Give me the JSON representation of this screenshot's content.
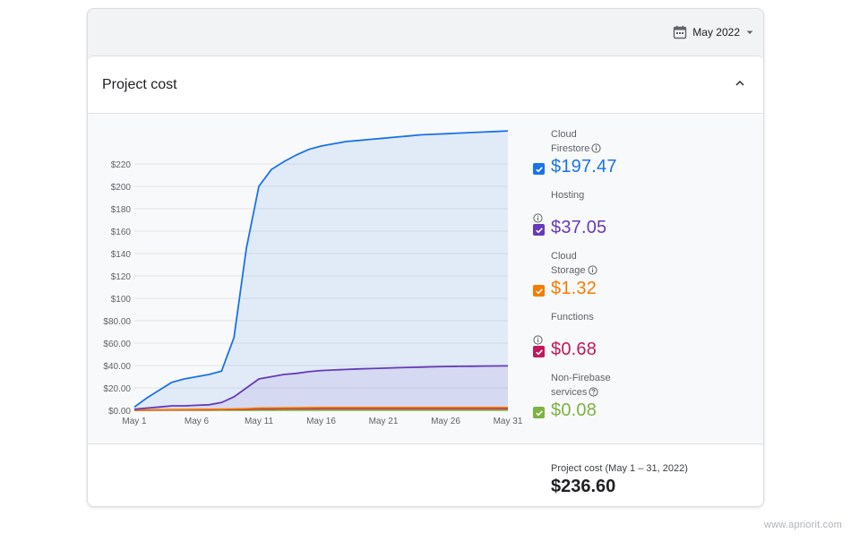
{
  "date_picker": {
    "label": "May 2022"
  },
  "panel": {
    "title": "Project cost"
  },
  "legend": [
    {
      "label_lines": [
        "Cloud",
        "Firestore"
      ],
      "info": "info",
      "value": "$197.47",
      "color": "#1a73e8"
    },
    {
      "label_lines": [
        "Hosting"
      ],
      "info": "info",
      "value": "$37.05",
      "color": "#673ab7"
    },
    {
      "label_lines": [
        "Cloud",
        "Storage"
      ],
      "info": "info",
      "value": "$1.32",
      "color": "#f57c00"
    },
    {
      "label_lines": [
        "Functions"
      ],
      "info": "info",
      "value": "$0.68",
      "color": "#c2185b"
    },
    {
      "label_lines": [
        "Non-Firebase",
        "services"
      ],
      "info": "help",
      "value": "$0.08",
      "color": "#7cb342"
    }
  ],
  "total": {
    "label": "Project cost (May 1 – 31, 2022)",
    "value": "$236.60"
  },
  "watermark": "www.apriorit.com",
  "chart_data": {
    "type": "area",
    "x_tick_labels": [
      "May 1",
      "May 6",
      "May 11",
      "May 16",
      "May 21",
      "May 26",
      "May 31"
    ],
    "y_tick_labels": [
      "$0.00",
      "$20.00",
      "$40.00",
      "$60.00",
      "$80.00",
      "$100",
      "$120",
      "$140",
      "$160",
      "$180",
      "$200",
      "$220"
    ],
    "ylim": [
      0,
      240
    ],
    "days": [
      1,
      2,
      3,
      4,
      5,
      6,
      7,
      8,
      9,
      10,
      11,
      12,
      13,
      14,
      15,
      16,
      17,
      18,
      19,
      20,
      21,
      22,
      23,
      24,
      25,
      26,
      27,
      28,
      29,
      30,
      31
    ],
    "series": [
      {
        "name": "Cloud Firestore",
        "color": "#1a73e8",
        "values": [
          3,
          11,
          18,
          25,
          28,
          30,
          32,
          35,
          65,
          145,
          200,
          215,
          222,
          228,
          233,
          236,
          238,
          240,
          241,
          242,
          243,
          244,
          245,
          246,
          246.5,
          247,
          247.5,
          248,
          248.5,
          249,
          249.5
        ]
      },
      {
        "name": "Hosting",
        "color": "#673ab7",
        "values": [
          1,
          2,
          3,
          4,
          4,
          4.5,
          5,
          7,
          12,
          20,
          28,
          30,
          32,
          33,
          34.5,
          35.5,
          36,
          36.5,
          37,
          37.3,
          37.6,
          38,
          38.3,
          38.6,
          38.9,
          39.1,
          39.3,
          39.4,
          39.5,
          39.6,
          39.7
        ]
      },
      {
        "name": "Cloud Storage",
        "color": "#f57c00",
        "values": [
          0.2,
          0.3,
          0.5,
          0.6,
          0.7,
          0.8,
          0.9,
          1,
          1.2,
          1.5,
          2,
          2.1,
          2.2,
          2.3,
          2.4,
          2.5,
          2.5,
          2.5,
          2.5,
          2.5,
          2.5,
          2.5,
          2.5,
          2.5,
          2.5,
          2.5,
          2.5,
          2.5,
          2.5,
          2.5,
          2.5
        ]
      },
      {
        "name": "Functions",
        "color": "#c2185b",
        "values": [
          0.1,
          0.2,
          0.3,
          0.4,
          0.5,
          0.6,
          0.6,
          0.7,
          0.8,
          1,
          1.3,
          1.4,
          1.5,
          1.6,
          1.6,
          1.6,
          1.6,
          1.6,
          1.6,
          1.6,
          1.6,
          1.6,
          1.6,
          1.6,
          1.6,
          1.6,
          1.6,
          1.6,
          1.6,
          1.6,
          1.6
        ]
      },
      {
        "name": "Non-Firebase services",
        "color": "#7cb342",
        "values": [
          0.05,
          0.05,
          0.05,
          0.05,
          0.05,
          0.05,
          0.05,
          0.05,
          0.05,
          0.05,
          0.08,
          0.08,
          0.08,
          0.08,
          0.08,
          0.08,
          0.08,
          0.08,
          0.08,
          0.08,
          0.08,
          0.08,
          0.08,
          0.08,
          0.08,
          0.08,
          0.08,
          0.08,
          0.08,
          0.08,
          0.08
        ]
      }
    ]
  }
}
